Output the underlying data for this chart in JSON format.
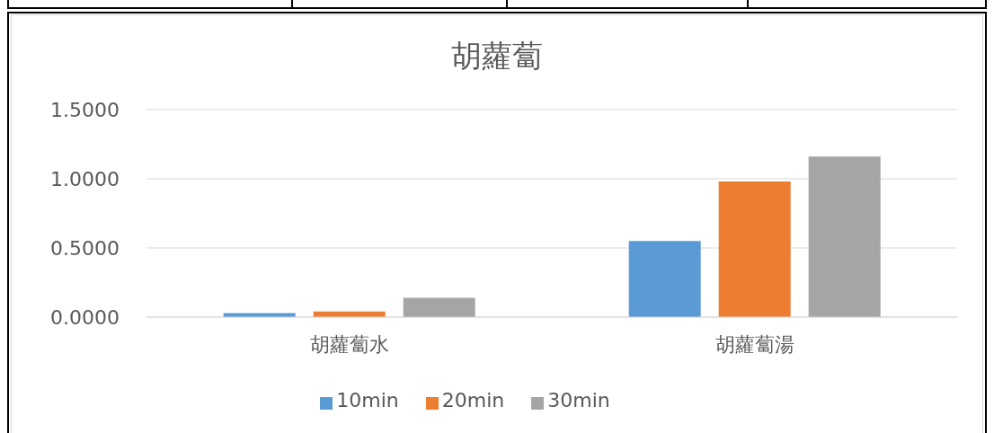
{
  "chart_data": {
    "type": "bar",
    "title": "胡蘿蔔",
    "categories": [
      "胡蘿蔔水",
      "胡蘿蔔湯"
    ],
    "series": [
      {
        "name": "10min",
        "color": "#5b9bd5",
        "values": [
          0.03,
          0.55
        ]
      },
      {
        "name": "20min",
        "color": "#ed7d31",
        "values": [
          0.04,
          0.98
        ]
      },
      {
        "name": "30min",
        "color": "#a5a5a5",
        "values": [
          0.14,
          1.16
        ]
      }
    ],
    "ylim": [
      0,
      1.5
    ],
    "yticks": [
      {
        "value": 0,
        "label": "0.0000"
      },
      {
        "value": 0.5,
        "label": "0.5000"
      },
      {
        "value": 1,
        "label": "1.0000"
      },
      {
        "value": 1.5,
        "label": "1.5000"
      }
    ],
    "grid": "y",
    "legend": "bottom"
  }
}
